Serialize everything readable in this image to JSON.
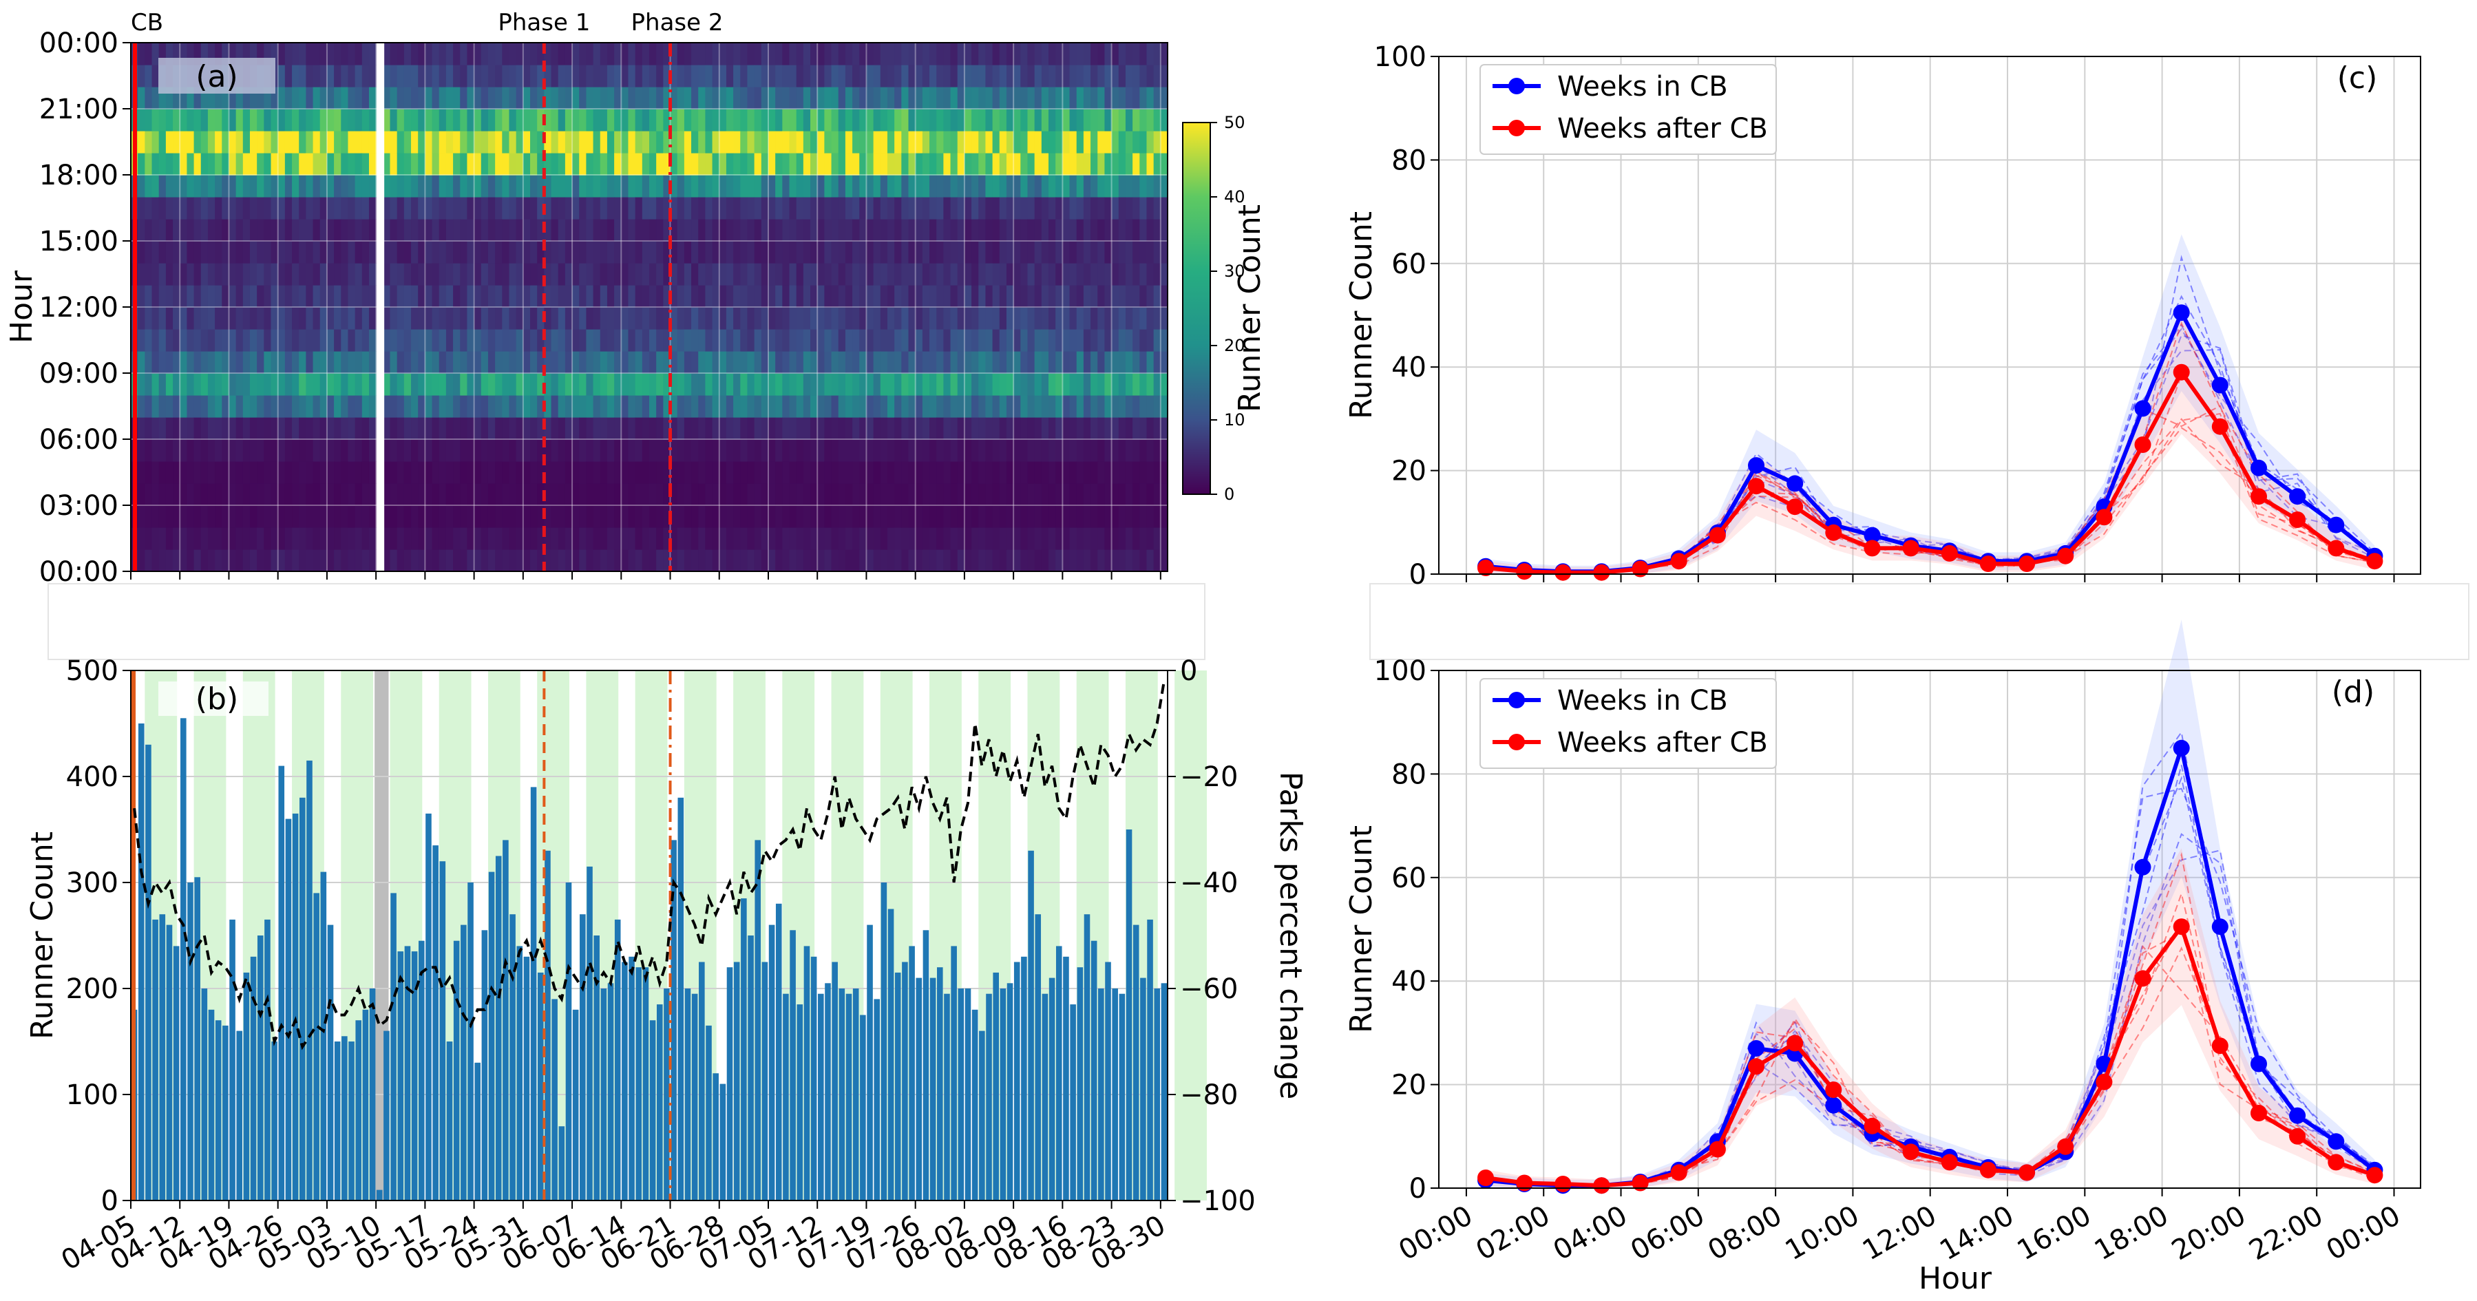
{
  "chart_data": [
    {
      "id": "a",
      "type": "heatmap",
      "panel_label": "(a)",
      "ylabel": "Hour",
      "y_ticks": [
        "00:00",
        "03:00",
        "06:00",
        "09:00",
        "12:00",
        "15:00",
        "18:00",
        "21:00",
        "00:00"
      ],
      "colorbar_label": "Runner Count",
      "colorbar_ticks": [
        0,
        10,
        20,
        30,
        40,
        50
      ],
      "colorbar_range": [
        0,
        50
      ],
      "annotations": [
        {
          "label": "CB",
          "day_index": 0,
          "style": "solid"
        },
        {
          "label": "Phase 1",
          "day_index": 59,
          "style": "dashed"
        },
        {
          "label": "Phase 2",
          "day_index": 77,
          "style": "dashdot"
        }
      ],
      "missing_day_index": 35,
      "days": 148,
      "hourly_profile": [
        3,
        2,
        1,
        1,
        1,
        2,
        4,
        14,
        24,
        13,
        9,
        7,
        6,
        5,
        4,
        4,
        6,
        18,
        42,
        46,
        30,
        14,
        8,
        5
      ]
    },
    {
      "id": "b",
      "type": "bar",
      "panel_label": "(b)",
      "ylabel": "Runner Count",
      "ylim": [
        0,
        500
      ],
      "y_ticks": [
        0,
        100,
        200,
        300,
        400,
        500
      ],
      "y2label": "Parks percent change",
      "y2lim": [
        -100,
        0
      ],
      "y2_ticks": [
        0,
        -20,
        -40,
        -60,
        -80,
        -100
      ],
      "x_ticks": [
        "04-05",
        "04-12",
        "04-19",
        "04-26",
        "05-03",
        "05-10",
        "05-17",
        "05-24",
        "05-31",
        "06-07",
        "06-14",
        "06-21",
        "06-28",
        "07-05",
        "07-12",
        "07-19",
        "07-26",
        "08-02",
        "08-09",
        "08-16",
        "08-23",
        "08-30"
      ],
      "annotations": [
        {
          "label": "CB",
          "day_index": 0,
          "style": "solid"
        },
        {
          "label": "Phase 1",
          "day_index": 59,
          "style": "dashed"
        },
        {
          "label": "Phase 2",
          "day_index": 77,
          "style": "dashdot"
        }
      ],
      "highlight_day_index": 35,
      "series": [
        {
          "name": "Runner Count",
          "kind": "bar",
          "values": [
            180,
            450,
            430,
            265,
            270,
            260,
            240,
            455,
            300,
            305,
            200,
            180,
            170,
            165,
            265,
            160,
            215,
            230,
            250,
            265,
            150,
            410,
            360,
            365,
            380,
            415,
            290,
            310,
            260,
            150,
            155,
            150,
            170,
            180,
            200,
            10,
            160,
            290,
            235,
            240,
            235,
            245,
            365,
            335,
            320,
            150,
            245,
            260,
            300,
            130,
            255,
            310,
            325,
            340,
            270,
            240,
            230,
            390,
            215,
            330,
            190,
            70,
            300,
            180,
            270,
            315,
            250,
            200,
            205,
            265,
            225,
            230,
            220,
            220,
            170,
            185,
            200,
            340,
            380,
            200,
            195,
            225,
            165,
            120,
            110,
            220,
            225,
            285,
            250,
            340,
            225,
            260,
            280,
            195,
            255,
            185,
            240,
            230,
            195,
            205,
            225,
            200,
            195,
            200,
            175,
            260,
            190,
            300,
            275,
            215,
            225,
            240,
            210,
            255,
            210,
            220,
            195,
            240,
            200,
            200,
            180,
            160,
            195,
            215,
            200,
            205,
            225,
            230,
            330,
            270,
            195,
            210,
            240,
            230,
            185,
            220,
            270,
            245,
            200,
            225,
            200,
            195,
            350,
            260,
            210,
            265,
            200,
            205
          ]
        },
        {
          "name": "Parks percent change",
          "kind": "line",
          "values": [
            -26,
            -38,
            -44,
            -40,
            -42,
            -40,
            -46,
            -48,
            -55,
            -52,
            -50,
            -57,
            -55,
            -56,
            -58,
            -62,
            -58,
            -62,
            -65,
            -62,
            -70,
            -67,
            -69,
            -66,
            -71,
            -69,
            -67,
            -68,
            -62,
            -65,
            -65,
            -63,
            -60,
            -64,
            -63,
            -67,
            -66,
            -62,
            -58,
            -60,
            -61,
            -57,
            -56,
            -56,
            -60,
            -58,
            -62,
            -65,
            -67,
            -64,
            -64,
            -60,
            -62,
            -55,
            -58,
            -53,
            -51,
            -55,
            -51,
            -55,
            -60,
            -62,
            -56,
            -58,
            -60,
            -55,
            -59,
            -57,
            -59,
            -51,
            -55,
            -57,
            -52,
            -58,
            -54,
            -59,
            -55,
            -40,
            -42,
            -45,
            -48,
            -52,
            -43,
            -46,
            -43,
            -40,
            -46,
            -38,
            -42,
            -40,
            -34,
            -36,
            -33,
            -32,
            -30,
            -34,
            -26,
            -30,
            -32,
            -27,
            -20,
            -30,
            -24,
            -28,
            -30,
            -32,
            -28,
            -27,
            -26,
            -24,
            -30,
            -22,
            -26,
            -20,
            -25,
            -28,
            -24,
            -40,
            -30,
            -25,
            -10,
            -18,
            -13,
            -20,
            -15,
            -21,
            -17,
            -24,
            -18,
            -12,
            -22,
            -18,
            -26,
            -28,
            -20,
            -14,
            -18,
            -22,
            -14,
            -16,
            -20,
            -18,
            -12,
            -15,
            -13,
            -14,
            -10,
            -2
          ]
        }
      ]
    },
    {
      "id": "c",
      "type": "line",
      "panel_label": "(c)",
      "ylabel": "Runner Count",
      "ylim": [
        0,
        100
      ],
      "y_ticks": [
        0,
        20,
        40,
        60,
        80,
        100
      ],
      "x": [
        0.5,
        1.5,
        2.5,
        3.5,
        4.5,
        5.5,
        6.5,
        7.5,
        8.5,
        9.5,
        10.5,
        11.5,
        12.5,
        13.5,
        14.5,
        15.5,
        16.5,
        17.5,
        18.5,
        19.5,
        20.5,
        21.5,
        22.5,
        23.5
      ],
      "legend": [
        "Weeks in CB",
        "Weeks after CB"
      ],
      "legend_position": "top-left",
      "series": [
        {
          "name": "Weeks in CB",
          "color": "#0000ff",
          "values": [
            1.5,
            0.8,
            0.5,
            0.5,
            1.2,
            3,
            8,
            21,
            17.5,
            9.5,
            7.5,
            5.5,
            4.5,
            2.5,
            2.5,
            4,
            13,
            32,
            50.5,
            36.5,
            20.5,
            15,
            9.5,
            3.5
          ]
        },
        {
          "name": "Weeks after CB",
          "color": "#ff0000",
          "values": [
            1.2,
            0.5,
            0.3,
            0.3,
            1,
            2.5,
            7.5,
            17,
            13,
            8,
            5,
            5,
            4,
            2,
            2,
            3.5,
            11,
            25,
            39,
            28.5,
            15,
            10.5,
            5,
            2.5
          ]
        }
      ]
    },
    {
      "id": "d",
      "type": "line",
      "panel_label": "(d)",
      "xlabel": "Hour",
      "ylabel": "Runner Count",
      "ylim": [
        0,
        100
      ],
      "y_ticks": [
        0,
        20,
        40,
        60,
        80,
        100
      ],
      "x": [
        0.5,
        1.5,
        2.5,
        3.5,
        4.5,
        5.5,
        6.5,
        7.5,
        8.5,
        9.5,
        10.5,
        11.5,
        12.5,
        13.5,
        14.5,
        15.5,
        16.5,
        17.5,
        18.5,
        19.5,
        20.5,
        21.5,
        22.5,
        23.5
      ],
      "x_ticks": [
        "00:00",
        "02:00",
        "04:00",
        "06:00",
        "08:00",
        "10:00",
        "12:00",
        "14:00",
        "16:00",
        "18:00",
        "20:00",
        "22:00",
        "00:00"
      ],
      "legend": [
        "Weeks in CB",
        "Weeks after CB"
      ],
      "legend_position": "top-left",
      "series": [
        {
          "name": "Weeks in CB",
          "color": "#0000ff",
          "values": [
            1.5,
            0.8,
            0.5,
            0.5,
            1.2,
            3.5,
            9,
            27,
            26,
            16,
            10.5,
            8,
            6,
            4,
            3,
            7,
            24,
            62,
            85,
            50.5,
            24,
            14,
            9,
            3.5
          ]
        },
        {
          "name": "Weeks after CB",
          "color": "#ff0000",
          "values": [
            2,
            1,
            0.8,
            0.5,
            1,
            3,
            7.5,
            23.5,
            28,
            19,
            12,
            7,
            5,
            3.5,
            3,
            8,
            20.5,
            40.5,
            50.5,
            27.5,
            14.5,
            10,
            5,
            2.5
          ]
        }
      ]
    }
  ]
}
